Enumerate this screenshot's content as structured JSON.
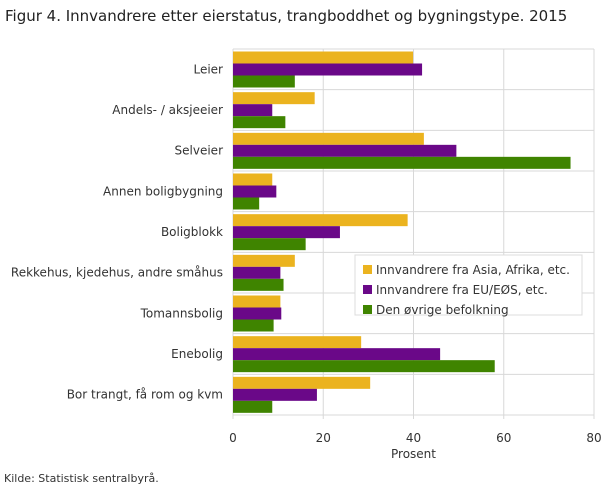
{
  "chart_data": {
    "type": "bar",
    "orientation": "horizontal",
    "title": "Figur 4. Innvandrere etter eierstatus, trangboddhet og bygningstype. 2015",
    "xlabel": "Prosent",
    "ylabel": "",
    "xlim": [
      0,
      80
    ],
    "xticks": [
      "0",
      "20",
      "40",
      "60",
      "80"
    ],
    "grid": true,
    "legend": "right",
    "categories": [
      "Leier",
      "Andels- / aksjeeier",
      "Selveier",
      "Annen boligbygning",
      "Boligblokk",
      "Rekkehus, kjedehus, andre småhus",
      "Tomannsbolig",
      "Enebolig",
      "Bor trangt, få rom og kvm"
    ],
    "series": [
      {
        "name": "Innvandrere fra Asia, Afrika, etc.",
        "color": "#ebb31f",
        "values": [
          39.9,
          18.1,
          42.3,
          8.7,
          38.7,
          13.7,
          10.5,
          28.4,
          30.4
        ]
      },
      {
        "name": "Innvandrere fra EU/EØS, etc.",
        "color": "#6a0888",
        "values": [
          41.9,
          8.7,
          49.5,
          9.6,
          23.7,
          10.5,
          10.7,
          45.9,
          18.6
        ]
      },
      {
        "name": "Den øvrige befolkning",
        "color": "#3f8400",
        "values": [
          13.7,
          11.6,
          74.8,
          5.8,
          16.1,
          11.2,
          9.0,
          58.0,
          8.7
        ]
      }
    ],
    "source": "Kilde: Statistisk sentralbyrå."
  }
}
